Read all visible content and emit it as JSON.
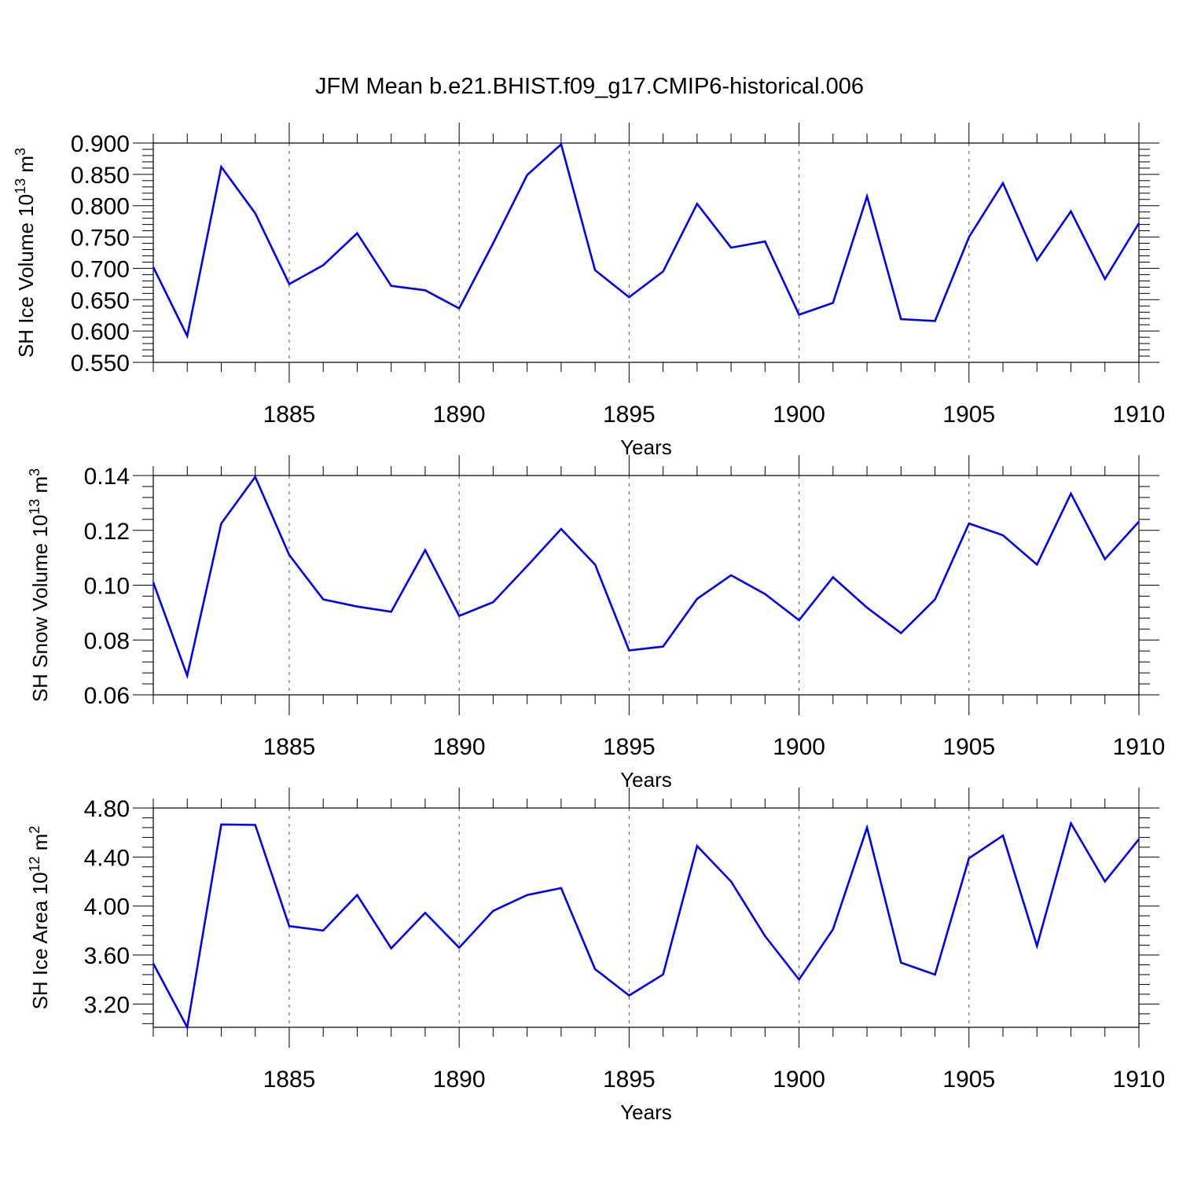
{
  "title": "JFM Mean b.e21.BHIST.f09_g17.CMIP6-historical.006",
  "colors": {
    "line": "#0000ff",
    "axis": "#000000"
  },
  "chart_data": [
    {
      "type": "line",
      "name": "ice-volume",
      "title": "JFM Mean b.e21.BHIST.f09_g17.CMIP6-historical.006",
      "ylabel": "SH Ice Volume 10",
      "ylabel_exp": "13",
      "ylabel_unit": " m",
      "ylabel_unit_exp": "3",
      "xlabel": "Years",
      "xlim": [
        1881,
        1910
      ],
      "ylim": [
        0.55,
        0.9
      ],
      "yticks": [
        0.55,
        0.6,
        0.65,
        0.7,
        0.75,
        0.8,
        0.85,
        0.9
      ],
      "ytick_labels": [
        "0.550",
        "0.600",
        "0.650",
        "0.700",
        "0.750",
        "0.800",
        "0.850",
        "0.900"
      ],
      "xticks": [
        1885,
        1890,
        1895,
        1900,
        1905,
        1910
      ],
      "xtick_labels": [
        "1885",
        "1890",
        "1895",
        "1900",
        "1905",
        "1910"
      ],
      "x": [
        1881,
        1882,
        1883,
        1884,
        1885,
        1886,
        1887,
        1888,
        1889,
        1890,
        1891,
        1892,
        1893,
        1894,
        1895,
        1896,
        1897,
        1898,
        1899,
        1900,
        1901,
        1902,
        1903,
        1904,
        1905,
        1906,
        1907,
        1908,
        1909,
        1910
      ],
      "values": [
        0.702,
        0.592,
        0.862,
        0.788,
        0.675,
        0.705,
        0.756,
        0.672,
        0.665,
        0.636,
        0.74,
        0.849,
        0.898,
        0.697,
        0.654,
        0.695,
        0.803,
        0.733,
        0.743,
        0.626,
        0.645,
        0.815,
        0.619,
        0.616,
        0.75,
        0.836,
        0.713,
        0.791,
        0.683,
        0.772
      ]
    },
    {
      "type": "line",
      "name": "snow-volume",
      "ylabel": "SH Snow Volume 10",
      "ylabel_exp": "13",
      "ylabel_unit": " m",
      "ylabel_unit_exp": "3",
      "xlabel": "Years",
      "xlim": [
        1881,
        1910
      ],
      "ylim": [
        0.06,
        0.14
      ],
      "yticks": [
        0.06,
        0.08,
        0.1,
        0.12,
        0.14
      ],
      "ytick_labels": [
        "0.06",
        "0.08",
        "0.10",
        "0.12",
        "0.14"
      ],
      "xticks": [
        1885,
        1890,
        1895,
        1900,
        1905,
        1910
      ],
      "xtick_labels": [
        "1885",
        "1890",
        "1895",
        "1900",
        "1905",
        "1910"
      ],
      "x": [
        1881,
        1882,
        1883,
        1884,
        1885,
        1886,
        1887,
        1888,
        1889,
        1890,
        1891,
        1892,
        1893,
        1894,
        1895,
        1896,
        1897,
        1898,
        1899,
        1900,
        1901,
        1902,
        1903,
        1904,
        1905,
        1906,
        1907,
        1908,
        1909,
        1910
      ],
      "values": [
        0.101,
        0.067,
        0.1225,
        0.1395,
        0.111,
        0.0948,
        0.0922,
        0.0903,
        0.1128,
        0.0888,
        0.0938,
        0.107,
        0.1205,
        0.1075,
        0.0762,
        0.0776,
        0.095,
        0.1036,
        0.0968,
        0.0872,
        0.1029,
        0.0918,
        0.0825,
        0.0948,
        0.1225,
        0.1182,
        0.1075,
        0.1334,
        0.1095,
        0.1232
      ]
    },
    {
      "type": "line",
      "name": "ice-area",
      "ylabel": "SH Ice Area 10",
      "ylabel_exp": "12",
      "ylabel_unit": " m",
      "ylabel_unit_exp": "2",
      "xlabel": "Years",
      "xlim": [
        1881,
        1910
      ],
      "ylim": [
        3.01,
        4.8
      ],
      "yticks": [
        3.2,
        3.6,
        4.0,
        4.4,
        4.8
      ],
      "ytick_labels": [
        "3.20",
        "3.60",
        "4.00",
        "4.40",
        "4.80"
      ],
      "xticks": [
        1885,
        1890,
        1895,
        1900,
        1905,
        1910
      ],
      "xtick_labels": [
        "1885",
        "1890",
        "1895",
        "1900",
        "1905",
        "1910"
      ],
      "x": [
        1881,
        1882,
        1883,
        1884,
        1885,
        1886,
        1887,
        1888,
        1889,
        1890,
        1891,
        1892,
        1893,
        1894,
        1895,
        1896,
        1897,
        1898,
        1899,
        1900,
        1901,
        1902,
        1903,
        1904,
        1905,
        1906,
        1907,
        1908,
        1909,
        1910
      ],
      "values": [
        3.53,
        3.01,
        4.665,
        4.662,
        3.836,
        3.8,
        4.09,
        3.655,
        3.944,
        3.66,
        3.96,
        4.09,
        4.146,
        3.485,
        3.27,
        3.441,
        4.49,
        4.2,
        3.755,
        3.4,
        3.81,
        4.64,
        3.538,
        3.44,
        4.39,
        4.575,
        3.674,
        4.675,
        4.2,
        4.545
      ]
    }
  ]
}
